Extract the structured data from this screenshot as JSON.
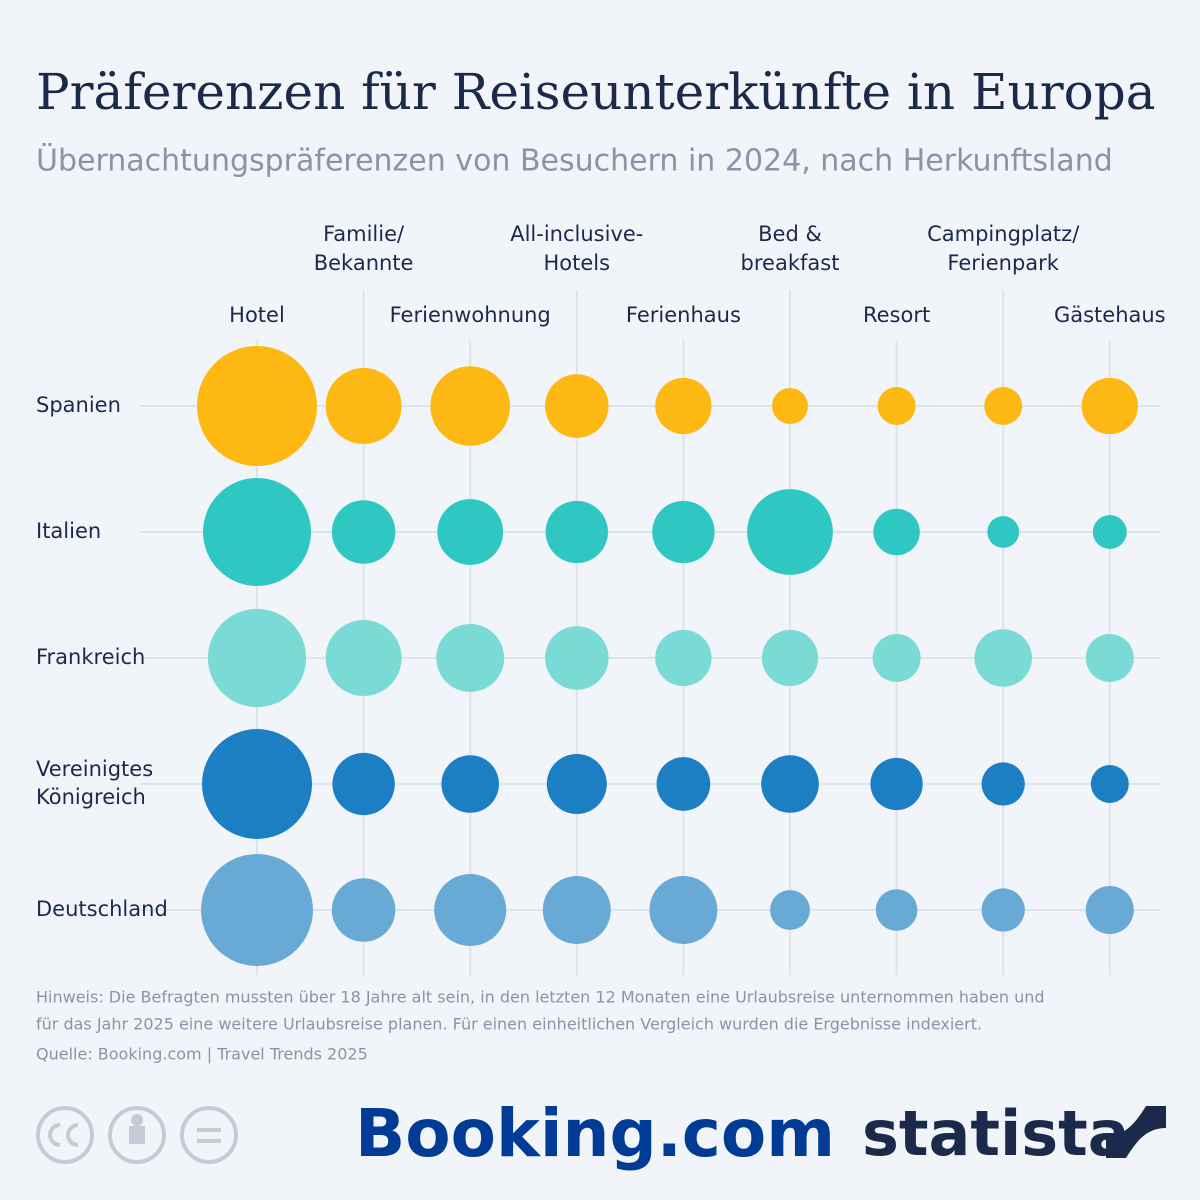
{
  "chart_data": {
    "type": "bubble-matrix",
    "title": "Präferenzen für Reiseunterkünfte in Europa",
    "subtitle": "Übernachtungspräferenzen von Besuchern in 2024, nach Herkunftsland",
    "categories": [
      [
        "Hotel"
      ],
      [
        "Familie/",
        "Bekannte"
      ],
      [
        "Ferienwohnung"
      ],
      [
        "All-inclusive-",
        "Hotels"
      ],
      [
        "Ferienhaus"
      ],
      [
        "Bed &",
        "breakfast"
      ],
      [
        "Resort"
      ],
      [
        "Campingplatz/",
        "Ferienpark"
      ],
      [
        "Gästehaus"
      ]
    ],
    "series": [
      {
        "name": [
          "Spanien"
        ],
        "color": "#fdb813",
        "values": [
          100,
          40,
          44,
          28,
          22,
          9,
          10,
          10,
          22
        ]
      },
      {
        "name": [
          "Italien"
        ],
        "color": "#2ec7c2",
        "values": [
          81,
          28,
          30,
          27,
          27,
          51,
          15,
          7,
          8
        ]
      },
      {
        "name": [
          "Frankreich"
        ],
        "color": "#7adad6",
        "values": [
          67,
          40,
          32,
          28,
          22,
          22,
          16,
          23,
          16
        ]
      },
      {
        "name": [
          "Vereinigtes",
          "Königreich"
        ],
        "color": "#1c7fc4",
        "values": [
          84,
          27,
          23,
          25,
          20,
          23,
          19,
          13,
          10
        ]
      },
      {
        "name": [
          "Deutschland"
        ],
        "color": "#68a9d6",
        "values": [
          87,
          28,
          36,
          32,
          32,
          11,
          12,
          13,
          16
        ]
      }
    ],
    "note": [
      "Hinweis: Die Befragten mussten über 18 Jahre alt sein, in den letzten 12 Monaten eine Urlaubsreise unternommen haben und",
      "für das Jahr 2025 eine weitere Urlaubsreise planen. Für einen einheitlichen Vergleich wurden die Ergebnisse indexiert."
    ],
    "source": "Quelle: Booking.com | Travel Trends 2025",
    "logos": [
      "Booking.com",
      "statista"
    ]
  }
}
